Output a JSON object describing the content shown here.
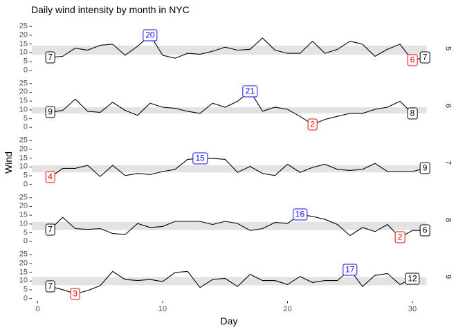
{
  "title": "Daily wind intensity by month in NYC",
  "colors": {
    "line": "#000000",
    "band": "#e3e3e3",
    "max_label": "#0f0fe8",
    "min_label": "#f00000",
    "first_label": "#000000",
    "last_label": "#000000",
    "tick_text": "#4d4d4d",
    "tick_mark": "#333333",
    "strip_text": "#1a1a1a"
  },
  "chart_data": {
    "type": "line",
    "title": "Daily wind intensity by month in NYC",
    "xlabel": "Day",
    "ylabel": "Wind",
    "x_ticks": [
      0,
      10,
      20,
      30
    ],
    "y_ticks": [
      0,
      5,
      10,
      15,
      20,
      25
    ],
    "xlim": [
      0,
      31
    ],
    "ylim": [
      0,
      25
    ],
    "grid": "off",
    "legend": "none",
    "facet_side": "right",
    "facets": [
      {
        "month": "5",
        "band": [
          8.9,
          14.1
        ],
        "wind": [
          7.4,
          8.0,
          12.6,
          11.5,
          14.3,
          14.9,
          8.6,
          13.8,
          20.1,
          8.6,
          6.9,
          9.7,
          9.2,
          10.9,
          13.2,
          11.5,
          12.0,
          18.4,
          11.5,
          9.7,
          9.7,
          16.6,
          9.7,
          12.0,
          16.6,
          14.9,
          8.0,
          12.0,
          14.9,
          5.7,
          7.4
        ],
        "labels": [
          {
            "type": "first",
            "day": 1,
            "value": 7.4,
            "text": "7"
          },
          {
            "type": "max",
            "day": 9,
            "value": 20.1,
            "text": "20"
          },
          {
            "type": "min",
            "day": 30,
            "value": 5.7,
            "text": "6"
          },
          {
            "type": "last",
            "day": 31,
            "value": 7.4,
            "text": "7"
          }
        ]
      },
      {
        "month": "6",
        "band": [
          8.0,
          11.5
        ],
        "wind": [
          8.6,
          9.7,
          16.1,
          9.2,
          8.6,
          14.3,
          9.7,
          6.9,
          13.8,
          11.5,
          10.9,
          9.2,
          8.0,
          13.8,
          11.5,
          14.9,
          20.7,
          9.2,
          11.5,
          10.3,
          6.3,
          1.7,
          4.6,
          6.3,
          8.0,
          8.0,
          10.3,
          11.5,
          14.9,
          8.0
        ],
        "labels": [
          {
            "type": "first",
            "day": 1,
            "value": 8.6,
            "text": "9"
          },
          {
            "type": "max",
            "day": 17,
            "value": 20.7,
            "text": "21"
          },
          {
            "type": "min",
            "day": 22,
            "value": 1.7,
            "text": "2"
          },
          {
            "type": "last",
            "day": 30,
            "value": 8.0,
            "text": "8"
          }
        ]
      },
      {
        "month": "7",
        "band": [
          6.9,
          10.9
        ],
        "wind": [
          4.1,
          9.2,
          9.2,
          10.9,
          4.6,
          10.9,
          5.1,
          6.3,
          5.7,
          7.4,
          8.6,
          14.3,
          14.9,
          14.9,
          14.3,
          6.9,
          10.3,
          6.3,
          5.1,
          11.5,
          6.9,
          9.7,
          11.5,
          8.6,
          8.0,
          8.6,
          12.0,
          7.4,
          7.4,
          7.4,
          9.2
        ],
        "labels": [
          {
            "type": "min",
            "day": 1,
            "value": 4.1,
            "text": "4"
          },
          {
            "type": "max",
            "day": 13,
            "value": 14.9,
            "text": "15"
          },
          {
            "type": "last",
            "day": 31,
            "value": 9.2,
            "text": "9"
          }
        ]
      },
      {
        "month": "8",
        "band": [
          6.6,
          11.2
        ],
        "wind": [
          6.9,
          13.8,
          7.4,
          6.9,
          7.4,
          4.6,
          4.0,
          10.3,
          8.0,
          8.6,
          11.5,
          11.5,
          11.5,
          9.7,
          11.5,
          10.3,
          6.3,
          7.4,
          10.9,
          10.3,
          15.5,
          14.3,
          12.6,
          9.7,
          3.4,
          8.0,
          5.7,
          9.7,
          2.3,
          6.3,
          6.3
        ],
        "labels": [
          {
            "type": "first",
            "day": 1,
            "value": 6.9,
            "text": "7"
          },
          {
            "type": "max",
            "day": 21,
            "value": 15.5,
            "text": "16"
          },
          {
            "type": "min",
            "day": 29,
            "value": 2.3,
            "text": "2"
          },
          {
            "type": "last",
            "day": 31,
            "value": 6.3,
            "text": "6"
          }
        ]
      },
      {
        "month": "9",
        "band": [
          7.6,
          12.3
        ],
        "wind": [
          6.9,
          5.1,
          2.8,
          4.6,
          7.4,
          15.5,
          10.9,
          10.3,
          10.9,
          9.7,
          14.9,
          15.5,
          6.3,
          10.9,
          11.5,
          6.9,
          13.8,
          10.3,
          10.3,
          8.0,
          12.6,
          9.2,
          10.3,
          10.3,
          16.6,
          6.9,
          13.2,
          14.3,
          8.0,
          11.5
        ],
        "labels": [
          {
            "type": "first",
            "day": 1,
            "value": 6.9,
            "text": "7"
          },
          {
            "type": "min",
            "day": 3,
            "value": 2.8,
            "text": "3"
          },
          {
            "type": "max",
            "day": 25,
            "value": 16.6,
            "text": "17"
          },
          {
            "type": "last",
            "day": 30,
            "value": 11.5,
            "text": "12"
          }
        ]
      }
    ]
  }
}
